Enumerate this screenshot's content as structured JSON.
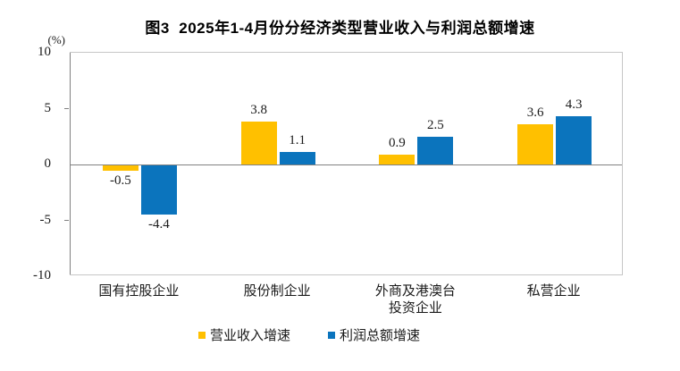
{
  "chart_data": {
    "type": "bar",
    "title": "图3  2025年1-4月份分经济类型营业收入与利润总额增速",
    "ylabel": "(%)",
    "ylim": [
      -10,
      10
    ],
    "yticks": [
      10,
      5,
      0,
      -5,
      -10
    ],
    "grid": "zero-line-only",
    "legend_position": "bottom",
    "categories": [
      "国有控股企业",
      "股份制企业",
      "外商及港澳台\n投资企业",
      "私营企业"
    ],
    "series": [
      {
        "name": "营业收入增速",
        "key": "revenue-growth",
        "color": "#FFC000",
        "values": [
          -0.5,
          3.8,
          0.9,
          3.6
        ]
      },
      {
        "name": "利润总额增速",
        "key": "profit-growth",
        "color": "#0B74BD",
        "values": [
          -4.4,
          1.1,
          2.5,
          4.3
        ]
      }
    ],
    "colors": {
      "axis": "#808080",
      "plot_border": "#c6c6c6",
      "text": "#1a1a1a"
    }
  }
}
